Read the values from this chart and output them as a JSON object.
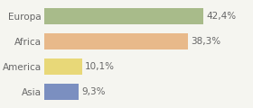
{
  "categories": [
    "Europa",
    "Africa",
    "America",
    "Asia"
  ],
  "values": [
    42.4,
    38.3,
    10.1,
    9.3
  ],
  "labels": [
    "42,4%",
    "38,3%",
    "10,1%",
    "9,3%"
  ],
  "bar_colors": [
    "#a8bb8a",
    "#e8b98a",
    "#e8d878",
    "#7b8fc0"
  ],
  "background_color": "#f5f5f0",
  "text_color": "#666666",
  "label_fontsize": 7.5,
  "category_fontsize": 7.5,
  "xlim": [
    0,
    55
  ]
}
